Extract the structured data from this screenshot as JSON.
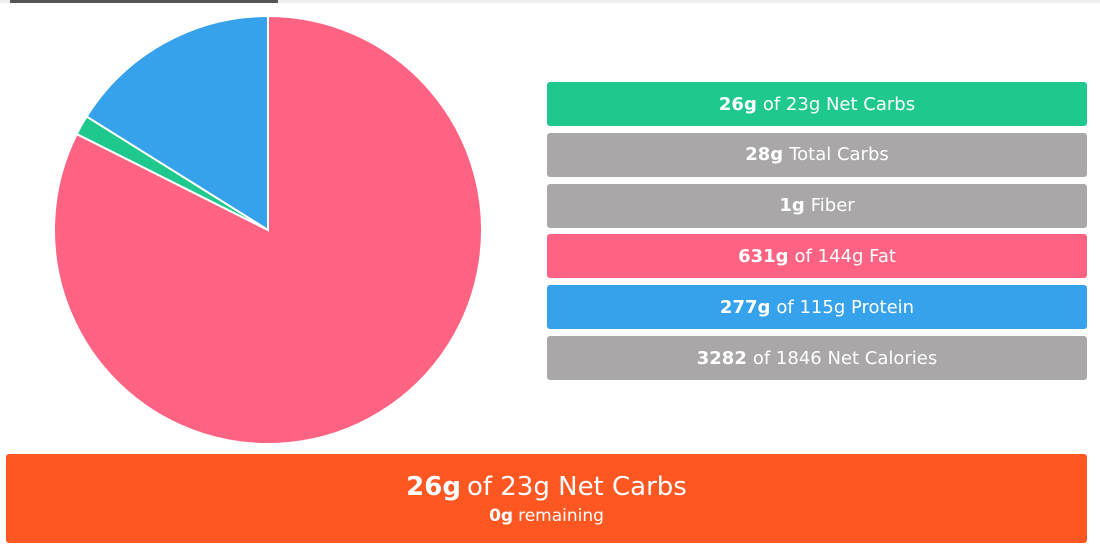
{
  "chart_data": {
    "type": "pie",
    "values": [
      82.4,
      1.5,
      16.1
    ],
    "colors": [
      "#ff6384",
      "#1fc98e",
      "#36a2eb"
    ]
  },
  "rows": [
    {
      "bold": "26g",
      "text": "of 23g Net Carbs",
      "color": "#1fc98e"
    },
    {
      "bold": "28g",
      "text": "Total Carbs",
      "color": "#a9a7a8"
    },
    {
      "bold": "1g",
      "text": "Fiber",
      "color": "#a9a7a8"
    },
    {
      "bold": "631g",
      "text": "of 144g Fat",
      "color": "#ff6384"
    },
    {
      "bold": "277g",
      "text": "of 115g Protein",
      "color": "#36a2eb"
    },
    {
      "bold": "3282",
      "text": "of 1846 Net Calories",
      "color": "#a9a7a8"
    }
  ],
  "banner": {
    "bold": "26g",
    "text": "of 23g Net Carbs",
    "sub_bold": "0g",
    "sub_text": "remaining",
    "color": "#ff5722"
  }
}
